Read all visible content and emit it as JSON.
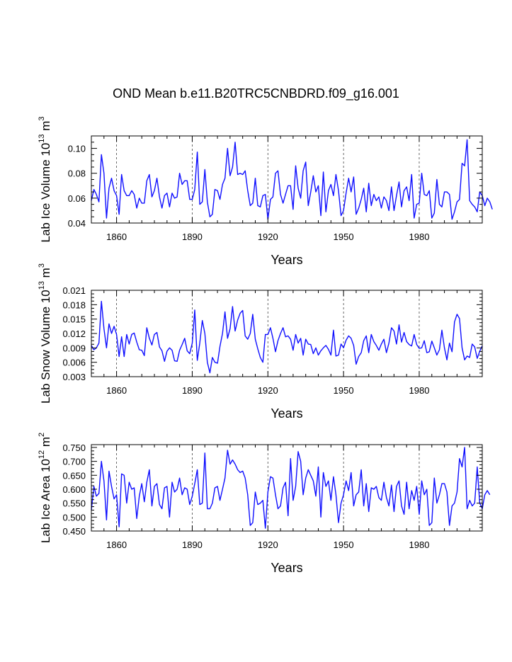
{
  "title": "OND Mean b.e11.B20TRC5CNBDRD.f09_g16.001",
  "chart_data": [
    {
      "type": "line",
      "ylabel": "Lab Ice Volume",
      "ylabel_exp": "13",
      "ylabel_unit": "m",
      "ylabel_unit_exp": "3",
      "xlabel": "Years",
      "xlim": [
        1850,
        2005
      ],
      "ylim": [
        0.04,
        0.11
      ],
      "yticks": [
        0.04,
        0.06,
        0.08,
        0.1
      ],
      "ytick_labels": [
        "0.04",
        "0.06",
        "0.08",
        "0.10"
      ],
      "xticks": [
        1860,
        1890,
        1920,
        1950,
        1980
      ],
      "xtick_labels": [
        "1860",
        "1890",
        "1920",
        "1950",
        "1980"
      ],
      "series": [
        {
          "name": "Lab Ice Volume",
          "color": "#1010ff",
          "x_start": 1850,
          "values": [
            0.058,
            0.067,
            0.063,
            0.057,
            0.095,
            0.08,
            0.044,
            0.068,
            0.076,
            0.066,
            0.062,
            0.047,
            0.079,
            0.066,
            0.062,
            0.062,
            0.066,
            0.063,
            0.052,
            0.06,
            0.056,
            0.056,
            0.074,
            0.079,
            0.061,
            0.066,
            0.076,
            0.061,
            0.052,
            0.062,
            0.064,
            0.053,
            0.064,
            0.06,
            0.061,
            0.08,
            0.071,
            0.074,
            0.074,
            0.059,
            0.059,
            0.067,
            0.097,
            0.055,
            0.057,
            0.083,
            0.057,
            0.045,
            0.047,
            0.067,
            0.066,
            0.059,
            0.071,
            0.076,
            0.1,
            0.078,
            0.085,
            0.105,
            0.079,
            0.08,
            0.079,
            0.082,
            0.066,
            0.054,
            0.056,
            0.076,
            0.054,
            0.053,
            0.062,
            0.063,
            0.043,
            0.059,
            0.061,
            0.08,
            0.082,
            0.063,
            0.056,
            0.063,
            0.07,
            0.07,
            0.051,
            0.086,
            0.068,
            0.06,
            0.082,
            0.089,
            0.054,
            0.065,
            0.078,
            0.065,
            0.07,
            0.046,
            0.081,
            0.049,
            0.066,
            0.071,
            0.062,
            0.079,
            0.066,
            0.046,
            0.05,
            0.064,
            0.076,
            0.065,
            0.077,
            0.047,
            0.052,
            0.059,
            0.068,
            0.049,
            0.072,
            0.054,
            0.063,
            0.058,
            0.061,
            0.052,
            0.061,
            0.058,
            0.05,
            0.069,
            0.05,
            0.062,
            0.073,
            0.053,
            0.066,
            0.069,
            0.058,
            0.079,
            0.044,
            0.055,
            0.056,
            0.08,
            0.063,
            0.062,
            0.066,
            0.044,
            0.048,
            0.075,
            0.055,
            0.053,
            0.065,
            0.065,
            0.063,
            0.043,
            0.049,
            0.057,
            0.059,
            0.088,
            0.086,
            0.107,
            0.058,
            0.055,
            0.053,
            0.049,
            0.065,
            0.062,
            0.054,
            0.06,
            0.057,
            0.051
          ]
        }
      ]
    },
    {
      "type": "line",
      "ylabel": "Lab Snow Volume",
      "ylabel_exp": "13",
      "ylabel_unit": "m",
      "ylabel_unit_exp": "3",
      "xlabel": "Years",
      "xlim": [
        1850,
        2005
      ],
      "ylim": [
        0.003,
        0.021
      ],
      "yticks": [
        0.003,
        0.006,
        0.009,
        0.012,
        0.015,
        0.018,
        0.021
      ],
      "ytick_labels": [
        "0.003",
        "0.006",
        "0.009",
        "0.012",
        "0.015",
        "0.018",
        "0.021"
      ],
      "xticks": [
        1860,
        1890,
        1920,
        1950,
        1980
      ],
      "xtick_labels": [
        "1860",
        "1890",
        "1920",
        "1950",
        "1980"
      ],
      "series": [
        {
          "name": "Lab Snow Volume",
          "color": "#1010ff",
          "x_start": 1850,
          "values": [
            0.0095,
            0.0086,
            0.009,
            0.01,
            0.0187,
            0.013,
            0.009,
            0.014,
            0.012,
            0.0135,
            0.0118,
            0.0072,
            0.0113,
            0.0072,
            0.0118,
            0.0098,
            0.0118,
            0.0121,
            0.0102,
            0.0086,
            0.0085,
            0.0074,
            0.0132,
            0.011,
            0.0096,
            0.0118,
            0.0122,
            0.0092,
            0.0084,
            0.0062,
            0.0083,
            0.009,
            0.0085,
            0.0063,
            0.0062,
            0.0085,
            0.0097,
            0.011,
            0.0084,
            0.0078,
            0.01,
            0.0169,
            0.0064,
            0.01,
            0.0147,
            0.012,
            0.006,
            0.0038,
            0.007,
            0.006,
            0.0058,
            0.0093,
            0.012,
            0.0165,
            0.011,
            0.013,
            0.0176,
            0.0125,
            0.0148,
            0.0162,
            0.0168,
            0.0115,
            0.0108,
            0.012,
            0.016,
            0.0108,
            0.0088,
            0.007,
            0.006,
            0.0118,
            0.0118,
            0.0132,
            0.011,
            0.0082,
            0.0105,
            0.012,
            0.0132,
            0.0113,
            0.0115,
            0.0108,
            0.0085,
            0.0118,
            0.01,
            0.011,
            0.0075,
            0.0108,
            0.0098,
            0.0097,
            0.0078,
            0.009,
            0.0075,
            0.0084,
            0.009,
            0.0095,
            0.0087,
            0.0075,
            0.0127,
            0.0073,
            0.0075,
            0.0098,
            0.009,
            0.0106,
            0.0115,
            0.011,
            0.0095,
            0.0056,
            0.0072,
            0.008,
            0.0105,
            0.0115,
            0.008,
            0.0118,
            0.0103,
            0.0095,
            0.0085,
            0.0098,
            0.0108,
            0.008,
            0.01,
            0.0132,
            0.0125,
            0.0098,
            0.0138,
            0.0102,
            0.0122,
            0.0103,
            0.0097,
            0.0094,
            0.0118,
            0.0097,
            0.0089,
            0.009,
            0.0105,
            0.008,
            0.0082,
            0.0104,
            0.009,
            0.0075,
            0.0086,
            0.0127,
            0.009,
            0.0065,
            0.01,
            0.0082,
            0.0144,
            0.016,
            0.0151,
            0.009,
            0.0065,
            0.0073,
            0.007,
            0.0098,
            0.0092,
            0.0068,
            0.0083,
            0.0094
          ]
        }
      ]
    },
    {
      "type": "line",
      "ylabel": "Lab Ice Area",
      "ylabel_exp": "12",
      "ylabel_unit": "m",
      "ylabel_unit_exp": "2",
      "xlabel": "Years",
      "xlim": [
        1850,
        2005
      ],
      "ylim": [
        0.45,
        0.76
      ],
      "yticks": [
        0.45,
        0.5,
        0.55,
        0.6,
        0.65,
        0.7,
        0.75
      ],
      "ytick_labels": [
        "0.450",
        "0.500",
        "0.550",
        "0.600",
        "0.650",
        "0.700",
        "0.750"
      ],
      "xticks": [
        1860,
        1890,
        1920,
        1950,
        1980
      ],
      "xtick_labels": [
        "1860",
        "1890",
        "1920",
        "1950",
        "1980"
      ],
      "series": [
        {
          "name": "Lab Ice Area",
          "color": "#1010ff",
          "x_start": 1850,
          "values": [
            0.525,
            0.61,
            0.575,
            0.585,
            0.7,
            0.63,
            0.49,
            0.665,
            0.61,
            0.565,
            0.58,
            0.465,
            0.655,
            0.65,
            0.55,
            0.625,
            0.6,
            0.605,
            0.495,
            0.575,
            0.62,
            0.555,
            0.625,
            0.67,
            0.54,
            0.61,
            0.62,
            0.545,
            0.53,
            0.605,
            0.61,
            0.5,
            0.625,
            0.59,
            0.6,
            0.64,
            0.58,
            0.605,
            0.6,
            0.545,
            0.575,
            0.62,
            0.67,
            0.545,
            0.55,
            0.73,
            0.53,
            0.53,
            0.55,
            0.605,
            0.61,
            0.56,
            0.6,
            0.64,
            0.74,
            0.69,
            0.705,
            0.69,
            0.67,
            0.66,
            0.665,
            0.64,
            0.58,
            0.47,
            0.48,
            0.59,
            0.545,
            0.55,
            0.56,
            0.46,
            0.59,
            0.645,
            0.64,
            0.58,
            0.53,
            0.54,
            0.605,
            0.625,
            0.505,
            0.71,
            0.56,
            0.61,
            0.735,
            0.7,
            0.58,
            0.64,
            0.67,
            0.65,
            0.63,
            0.575,
            0.68,
            0.5,
            0.66,
            0.61,
            0.63,
            0.56,
            0.645,
            0.58,
            0.48,
            0.55,
            0.58,
            0.63,
            0.595,
            0.66,
            0.54,
            0.58,
            0.59,
            0.67,
            0.54,
            0.62,
            0.52,
            0.605,
            0.6,
            0.61,
            0.57,
            0.56,
            0.625,
            0.57,
            0.54,
            0.615,
            0.52,
            0.61,
            0.63,
            0.54,
            0.51,
            0.625,
            0.53,
            0.595,
            0.56,
            0.61,
            0.51,
            0.63,
            0.58,
            0.6,
            0.47,
            0.48,
            0.64,
            0.55,
            0.58,
            0.62,
            0.62,
            0.59,
            0.47,
            0.54,
            0.55,
            0.59,
            0.71,
            0.68,
            0.75,
            0.53,
            0.56,
            0.54,
            0.55,
            0.68,
            0.55,
            0.53,
            0.58,
            0.595,
            0.58
          ]
        }
      ]
    }
  ]
}
